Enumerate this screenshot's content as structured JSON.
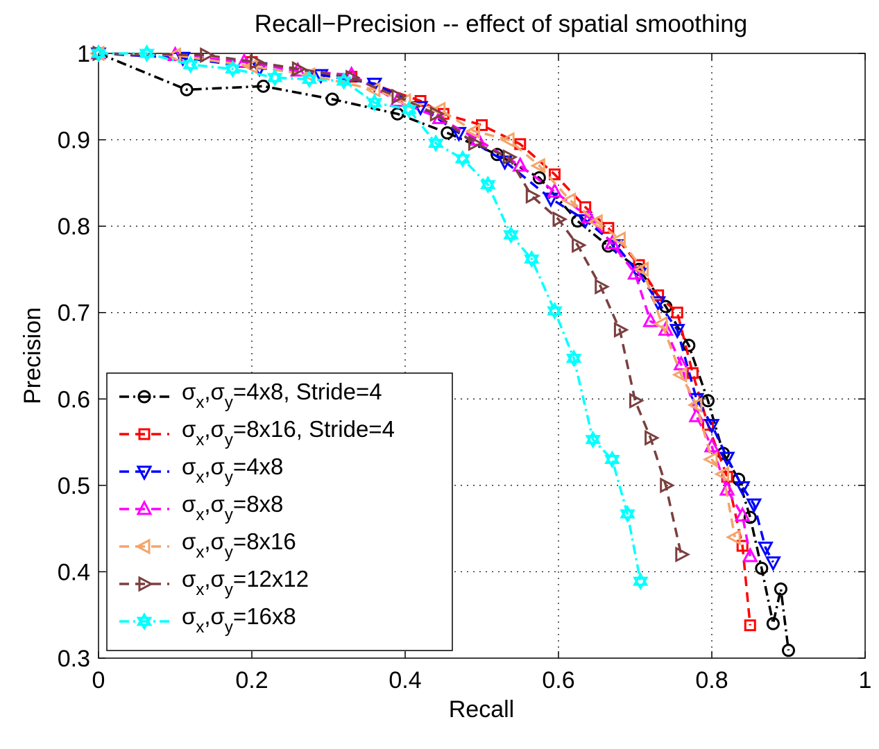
{
  "chart_data": {
    "type": "line",
    "title": "Recall−Precision -- effect of spatial smoothing",
    "xlabel": "Recall",
    "ylabel": "Precision",
    "xlim": [
      0,
      1
    ],
    "ylim": [
      0.3,
      1
    ],
    "xticks": [
      0,
      0.2,
      0.4,
      0.6,
      0.8,
      1
    ],
    "xtick_labels": [
      "0",
      "0.2",
      "0.4",
      "0.6",
      "0.8",
      "1"
    ],
    "yticks": [
      0.3,
      0.4,
      0.5,
      0.6,
      0.7,
      0.8,
      0.9,
      1
    ],
    "ytick_labels": [
      "0.3",
      "0.4",
      "0.5",
      "0.6",
      "0.7",
      "0.8",
      "0.9",
      "1"
    ],
    "grid": true,
    "legend_position": "lower-left",
    "series": [
      {
        "name": "σx,σy=4x8, Stride=4",
        "legend_prefix": "σ",
        "legend_sub1": "x",
        "legend_mid": ",σ",
        "legend_sub2": "y",
        "legend_suffix": "=4x8, Stride=4",
        "color": "#000000",
        "marker": "circle",
        "dash": "dashdot",
        "x": [
          0.0,
          0.115,
          0.215,
          0.305,
          0.39,
          0.455,
          0.52,
          0.575,
          0.625,
          0.665,
          0.705,
          0.74,
          0.77,
          0.795,
          0.815,
          0.835,
          0.85,
          0.865,
          0.88,
          0.89,
          0.9
        ],
        "y": [
          1.0,
          0.958,
          0.962,
          0.947,
          0.93,
          0.908,
          0.883,
          0.856,
          0.806,
          0.777,
          0.75,
          0.707,
          0.662,
          0.598,
          0.537,
          0.507,
          0.463,
          0.404,
          0.34,
          0.38,
          0.309
        ]
      },
      {
        "name": "σx,σy=8x16, Stride=4",
        "legend_prefix": "σ",
        "legend_sub1": "x",
        "legend_mid": ",σ",
        "legend_sub2": "y",
        "legend_suffix": "=8x16, Stride=4",
        "color": "#ff0000",
        "marker": "square",
        "dash": "dashed",
        "x": [
          0.0,
          0.2,
          0.33,
          0.42,
          0.45,
          0.5,
          0.55,
          0.595,
          0.635,
          0.665,
          0.705,
          0.73,
          0.755,
          0.775,
          0.795,
          0.82,
          0.84,
          0.85
        ],
        "y": [
          1.0,
          0.99,
          0.973,
          0.945,
          0.93,
          0.917,
          0.895,
          0.86,
          0.822,
          0.798,
          0.755,
          0.72,
          0.7,
          0.63,
          0.57,
          0.51,
          0.43,
          0.338
        ]
      },
      {
        "name": "σx,σy=4x8",
        "legend_prefix": "σ",
        "legend_sub1": "x",
        "legend_mid": ",σ",
        "legend_sub2": "y",
        "legend_suffix": "=4x8",
        "color": "#0000ff",
        "marker": "triangle-down",
        "dash": "dashed",
        "x": [
          0.0,
          0.11,
          0.21,
          0.29,
          0.36,
          0.42,
          0.47,
          0.53,
          0.59,
          0.635,
          0.675,
          0.705,
          0.73,
          0.755,
          0.78,
          0.8,
          0.82,
          0.84,
          0.855,
          0.87,
          0.88
        ],
        "y": [
          1.0,
          0.995,
          0.983,
          0.975,
          0.965,
          0.938,
          0.908,
          0.875,
          0.832,
          0.807,
          0.778,
          0.745,
          0.712,
          0.68,
          0.6,
          0.57,
          0.532,
          0.498,
          0.478,
          0.428,
          0.411
        ]
      },
      {
        "name": "σx,σy=8x8",
        "legend_prefix": "σ",
        "legend_sub1": "x",
        "legend_mid": ",σ",
        "legend_sub2": "y",
        "legend_suffix": "=8x8",
        "color": "#ff00ff",
        "marker": "triangle-up",
        "dash": "dashed",
        "x": [
          0.0,
          0.1,
          0.19,
          0.26,
          0.33,
          0.39,
          0.445,
          0.495,
          0.55,
          0.595,
          0.64,
          0.67,
          0.7,
          0.72,
          0.74,
          0.76,
          0.78,
          0.8,
          0.82,
          0.84,
          0.85
        ],
        "y": [
          1.0,
          0.998,
          0.99,
          0.98,
          0.975,
          0.945,
          0.925,
          0.9,
          0.87,
          0.84,
          0.81,
          0.78,
          0.745,
          0.69,
          0.68,
          0.64,
          0.58,
          0.545,
          0.495,
          0.465,
          0.418
        ]
      },
      {
        "name": "σx,σy=8x16",
        "legend_prefix": "σ",
        "legend_sub1": "x",
        "legend_mid": ",σ",
        "legend_sub2": "y",
        "legend_suffix": "=8x16",
        "color": "#f4a46a",
        "marker": "triangle-left",
        "dash": "dashed",
        "x": [
          0.0,
          0.1,
          0.2,
          0.275,
          0.36,
          0.4,
          0.445,
          0.49,
          0.535,
          0.575,
          0.615,
          0.65,
          0.68,
          0.71,
          0.735,
          0.76,
          0.78,
          0.8,
          0.815,
          0.83
        ],
        "y": [
          1.0,
          0.998,
          0.985,
          0.975,
          0.958,
          0.945,
          0.935,
          0.91,
          0.9,
          0.87,
          0.83,
          0.805,
          0.785,
          0.75,
          0.687,
          0.628,
          0.593,
          0.53,
          0.513,
          0.44
        ]
      },
      {
        "name": "σx,σy=12x12",
        "legend_prefix": "σ",
        "legend_sub1": "x",
        "legend_mid": ",σ",
        "legend_sub2": "y",
        "legend_suffix": "=12x12",
        "color": "#7b3f3f",
        "marker": "triangle-right",
        "dash": "dashed",
        "x": [
          0.0,
          0.14,
          0.205,
          0.26,
          0.33,
          0.39,
          0.44,
          0.49,
          0.535,
          0.565,
          0.6,
          0.625,
          0.655,
          0.68,
          0.7,
          0.72,
          0.74,
          0.76
        ],
        "y": [
          1.0,
          0.998,
          0.99,
          0.982,
          0.972,
          0.95,
          0.93,
          0.896,
          0.88,
          0.835,
          0.808,
          0.778,
          0.73,
          0.68,
          0.598,
          0.555,
          0.5,
          0.42
        ]
      },
      {
        "name": "σx,σy=16x8",
        "legend_prefix": "σ",
        "legend_sub1": "x",
        "legend_mid": ",σ",
        "legend_sub2": "y",
        "legend_suffix": "=16x8",
        "color": "#00ffff",
        "marker": "hexagram",
        "dash": "dashdot",
        "x": [
          0.0,
          0.063,
          0.12,
          0.175,
          0.23,
          0.275,
          0.32,
          0.36,
          0.405,
          0.44,
          0.475,
          0.508,
          0.538,
          0.565,
          0.595,
          0.62,
          0.645,
          0.67,
          0.69,
          0.707
        ],
        "y": [
          1.0,
          1.0,
          0.987,
          0.982,
          0.972,
          0.97,
          0.968,
          0.943,
          0.935,
          0.896,
          0.878,
          0.848,
          0.79,
          0.762,
          0.702,
          0.647,
          0.553,
          0.53,
          0.467,
          0.389
        ]
      }
    ]
  }
}
